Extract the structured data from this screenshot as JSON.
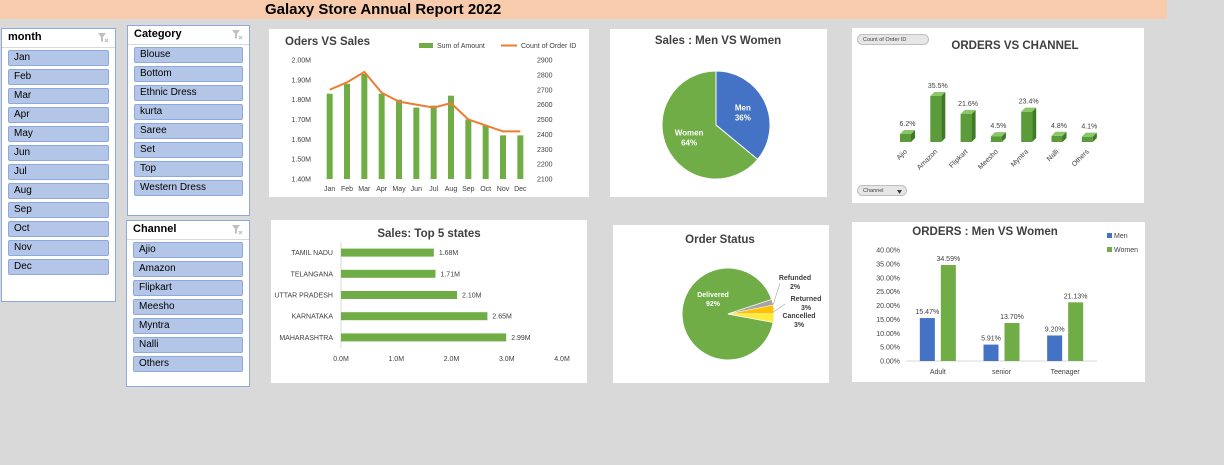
{
  "report": {
    "title": "Galaxy Store Annual Report 2022"
  },
  "slicers": {
    "month": {
      "title": "month",
      "items": [
        "Jan",
        "Feb",
        "Mar",
        "Apr",
        "May",
        "Jun",
        "Jul",
        "Aug",
        "Sep",
        "Oct",
        "Nov",
        "Dec"
      ]
    },
    "category": {
      "title": "Category",
      "items": [
        "Blouse",
        "Bottom",
        "Ethnic Dress",
        "kurta",
        "Saree",
        "Set",
        "Top",
        "Western Dress"
      ]
    },
    "channel": {
      "title": "Channel",
      "items": [
        "Ajio",
        "Amazon",
        "Flipkart",
        "Meesho",
        "Myntra",
        "Nalli",
        "Others"
      ]
    }
  },
  "controls": {
    "count_button": "Count of Order ID",
    "channel_dropdown": "Channel",
    "filter_icon": "filter-clear-icon",
    "dropdown_icon": "chevron-down-icon"
  },
  "colors": {
    "green": "#70ad47",
    "orange": "#ed7d31",
    "blue": "#4472c4",
    "title_band": "#f8cbad",
    "slicer_item": "#b4c6e7"
  },
  "chart_data": [
    {
      "id": "orders-vs-sales",
      "type": "bar",
      "title": "Oders VS Sales",
      "categories": [
        "Jan",
        "Feb",
        "Mar",
        "Apr",
        "May",
        "Jun",
        "Jul",
        "Aug",
        "Sep",
        "Oct",
        "Nov",
        "Dec"
      ],
      "series": [
        {
          "name": "Sum of Amount",
          "type": "bar",
          "axis": "left",
          "values": [
            1.83,
            1.88,
            1.93,
            1.83,
            1.8,
            1.76,
            1.77,
            1.82,
            1.7,
            1.67,
            1.62,
            1.62
          ]
        },
        {
          "name": "Count of Order ID",
          "type": "line",
          "axis": "right",
          "values": [
            2700,
            2750,
            2820,
            2680,
            2620,
            2600,
            2580,
            2610,
            2500,
            2460,
            2420,
            2420
          ]
        }
      ],
      "y_left": {
        "ticks": [
          "2.00M",
          "1.90M",
          "1.80M",
          "1.70M",
          "1.60M",
          "1.50M",
          "1.40M"
        ],
        "range": [
          1.4,
          2.0
        ]
      },
      "y_right": {
        "ticks": [
          "2900",
          "2800",
          "2700",
          "2600",
          "2500",
          "2400",
          "2300",
          "2200",
          "2100"
        ],
        "range": [
          2100,
          2900
        ]
      },
      "legend": "top"
    },
    {
      "id": "sales-men-women",
      "type": "pie",
      "title": "Sales : Men VS Women",
      "slices": [
        {
          "name": "Men",
          "value": 36,
          "label": "36%"
        },
        {
          "name": "Women",
          "value": 64,
          "label": "64%"
        }
      ]
    },
    {
      "id": "orders-vs-channel",
      "type": "bar",
      "title": "ORDERS VS CHANNEL",
      "categories": [
        "Ajio",
        "Amazon",
        "Flipkart",
        "Meesho",
        "Myntra",
        "Nalli",
        "Others"
      ],
      "values": [
        6.2,
        35.5,
        21.6,
        4.5,
        23.4,
        4.8,
        4.1
      ],
      "labels": [
        "6.2%",
        "35.5%",
        "21.6%",
        "4.5%",
        "23.4%",
        "4.8%",
        "4.1%"
      ]
    },
    {
      "id": "top-5-states",
      "type": "bar",
      "orientation": "horizontal",
      "title": "Sales: Top 5 states",
      "categories": [
        "TAMIL NADU",
        "TELANGANA",
        "UTTAR PRADESH",
        "KARNATAKA",
        "MAHARASHTRA"
      ],
      "values": [
        1.68,
        1.71,
        2.1,
        2.65,
        2.99
      ],
      "labels": [
        "1.68M",
        "1.71M",
        "2.10M",
        "2.65M",
        "2.99M"
      ],
      "x_ticks": [
        "0.0M",
        "1.0M",
        "2.0M",
        "3.0M",
        "4.0M"
      ],
      "xlim": [
        0,
        4
      ]
    },
    {
      "id": "order-status",
      "type": "pie",
      "title": "Order Status",
      "slices": [
        {
          "name": "Delivered",
          "value": 92,
          "label": "92%"
        },
        {
          "name": "Refunded",
          "value": 2,
          "label": "2%"
        },
        {
          "name": "Returned",
          "value": 3,
          "label": "3%"
        },
        {
          "name": "Cancelled",
          "value": 3,
          "label": "3%"
        }
      ]
    },
    {
      "id": "orders-men-women",
      "type": "bar",
      "title": "ORDERS : Men VS Women",
      "categories": [
        "Adult",
        "senior",
        "Teenager"
      ],
      "series": [
        {
          "name": "Men",
          "values": [
            15.47,
            5.91,
            9.2
          ],
          "labels": [
            "15.47%",
            "5.91%",
            "9.20%"
          ]
        },
        {
          "name": "Women",
          "values": [
            34.59,
            13.7,
            21.13
          ],
          "labels": [
            "34.59%",
            "13.70%",
            "21.13%"
          ]
        }
      ],
      "y_ticks": [
        "40.00%",
        "35.00%",
        "30.00%",
        "25.00%",
        "20.00%",
        "15.00%",
        "10.00%",
        "5.00%",
        "0.00%"
      ],
      "ylim": [
        0,
        40
      ],
      "legend": "top-right"
    }
  ]
}
